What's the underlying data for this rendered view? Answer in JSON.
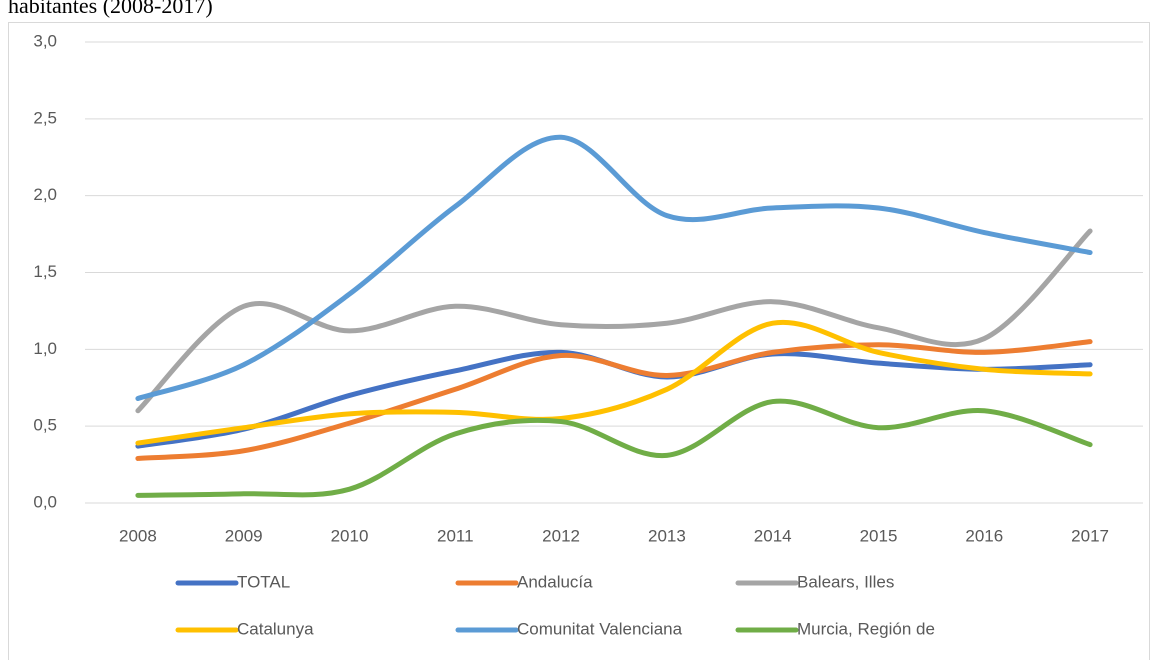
{
  "chart_data": {
    "type": "line",
    "title": "habitantes (2008-2017)",
    "categories": [
      "2008",
      "2009",
      "2010",
      "2011",
      "2012",
      "2013",
      "2014",
      "2015",
      "2016",
      "2017"
    ],
    "series": [
      {
        "name": "TOTAL",
        "color": "#4472c4",
        "values": [
          0.37,
          0.48,
          0.7,
          0.86,
          0.98,
          0.82,
          0.97,
          0.91,
          0.87,
          0.9
        ]
      },
      {
        "name": "Andalucía",
        "color": "#ed7d31",
        "values": [
          0.29,
          0.34,
          0.52,
          0.74,
          0.96,
          0.83,
          0.98,
          1.03,
          0.98,
          1.05
        ]
      },
      {
        "name": "Balears, Illes",
        "color": "#a5a5a5",
        "values": [
          0.6,
          1.28,
          1.12,
          1.28,
          1.16,
          1.17,
          1.31,
          1.14,
          1.07,
          1.77
        ]
      },
      {
        "name": "Catalunya",
        "color": "#ffc000",
        "values": [
          0.39,
          0.49,
          0.58,
          0.59,
          0.55,
          0.74,
          1.17,
          0.98,
          0.87,
          0.84
        ]
      },
      {
        "name": "Comunitat Valenciana",
        "color": "#5b9bd5",
        "values": [
          0.68,
          0.9,
          1.36,
          1.93,
          2.38,
          1.87,
          1.92,
          1.92,
          1.76,
          1.63
        ]
      },
      {
        "name": "Murcia, Región de",
        "color": "#70ad47",
        "values": [
          0.05,
          0.06,
          0.09,
          0.45,
          0.53,
          0.31,
          0.66,
          0.49,
          0.6,
          0.38
        ]
      }
    ],
    "ylim": [
      0,
      3
    ],
    "yticks": [
      {
        "value": 0,
        "label": "0,0"
      },
      {
        "value": 0.5,
        "label": "0,5"
      },
      {
        "value": 1,
        "label": "1,0"
      },
      {
        "value": 1.5,
        "label": "1,5"
      },
      {
        "value": 2,
        "label": "2,0"
      },
      {
        "value": 2.5,
        "label": "2,5"
      },
      {
        "value": 3,
        "label": "3,0"
      }
    ],
    "grid": true,
    "smooth": true,
    "legend": "bottom"
  }
}
